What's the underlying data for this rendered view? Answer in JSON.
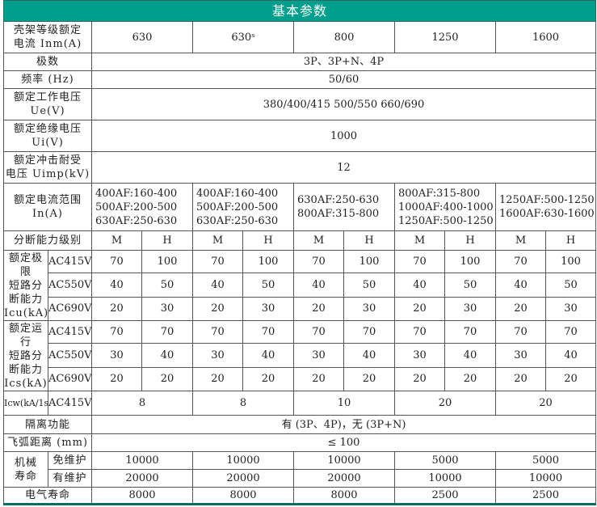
{
  "title": "基本参数",
  "accent_color": "#009e8c",
  "frame": {
    "label": "壳架等级额定\n电流 Inm(A)",
    "values": [
      "630",
      "630ˢ",
      "800",
      "1250",
      "1600"
    ]
  },
  "poles": {
    "label": "极数",
    "value": "3P、3P+N、4P"
  },
  "frequency": {
    "label": "频率 (Hz)",
    "value": "50/60"
  },
  "ue": {
    "label": "额定工作电压\nUe(V)",
    "value": "380/400/415    500/550    660/690"
  },
  "ui": {
    "label": "额定绝缘电压\nUi(V)",
    "value": "1000"
  },
  "uimp": {
    "label": "额定冲击耐受\n电压 Uimp(kV)",
    "value": "12"
  },
  "in_range": {
    "label": "额定电流范围\nIn(A)",
    "values": [
      "400AF:160-400\n500AF:200-500\n630AF:250-630",
      "400AF:160-400\n500AF:200-500\n630AF:250-630",
      "630AF:250-630\n800AF:315-800",
      "800AF:315-800\n1000AF:400-1000\n1250AF:500-1250",
      "1250AF:500-1250\n1600AF:630-1600"
    ]
  },
  "breaking_level": {
    "label": "分断能力级别",
    "values": [
      "M",
      "H",
      "M",
      "H",
      "M",
      "H",
      "M",
      "H",
      "M",
      "H"
    ]
  },
  "icu": {
    "label": "额定极限\n短路分\n断能力\nIcu(kA)",
    "rows": [
      {
        "voltage": "AC415V",
        "values": [
          "70",
          "100",
          "70",
          "100",
          "70",
          "100",
          "70",
          "100",
          "70",
          "100"
        ]
      },
      {
        "voltage": "AC550V",
        "values": [
          "40",
          "50",
          "40",
          "50",
          "40",
          "50",
          "40",
          "50",
          "40",
          "50"
        ]
      },
      {
        "voltage": "AC690V",
        "values": [
          "20",
          "30",
          "20",
          "30",
          "20",
          "30",
          "20",
          "30",
          "20",
          "30"
        ]
      }
    ]
  },
  "ics": {
    "label": "额定运行\n短路分\n断能力\nIcs(kA)",
    "rows": [
      {
        "voltage": "AC415V",
        "values": [
          "70",
          "70",
          "70",
          "70",
          "70",
          "70",
          "70",
          "70",
          "70",
          "70"
        ]
      },
      {
        "voltage": "AC550V",
        "values": [
          "30",
          "40",
          "30",
          "40",
          "30",
          "40",
          "30",
          "40",
          "30",
          "40"
        ]
      },
      {
        "voltage": "AC690V",
        "values": [
          "20",
          "20",
          "20",
          "20",
          "20",
          "20",
          "20",
          "20",
          "20",
          "20"
        ]
      }
    ]
  },
  "icw": {
    "label": "Icw(kA/1s)",
    "voltage": "AC415V",
    "values": [
      "8",
      "8",
      "10",
      "20",
      "20"
    ]
  },
  "isolation": {
    "label": "隔离功能",
    "value": "有 (3P、4P)，无 (3P+N)"
  },
  "arc": {
    "label": "飞弧距离 (mm)",
    "value": "≤ 100"
  },
  "mechanical": {
    "label": "机械\n寿命",
    "rows": [
      {
        "label": "免维护",
        "values": [
          "10000",
          "10000",
          "10000",
          "5000",
          "5000"
        ]
      },
      {
        "label": "有维护",
        "values": [
          "20000",
          "20000",
          "20000",
          "10000",
          "10000"
        ]
      }
    ]
  },
  "electrical": {
    "label": "电气寿命",
    "values": [
      "8000",
      "8000",
      "8000",
      "2500",
      "2500"
    ]
  }
}
